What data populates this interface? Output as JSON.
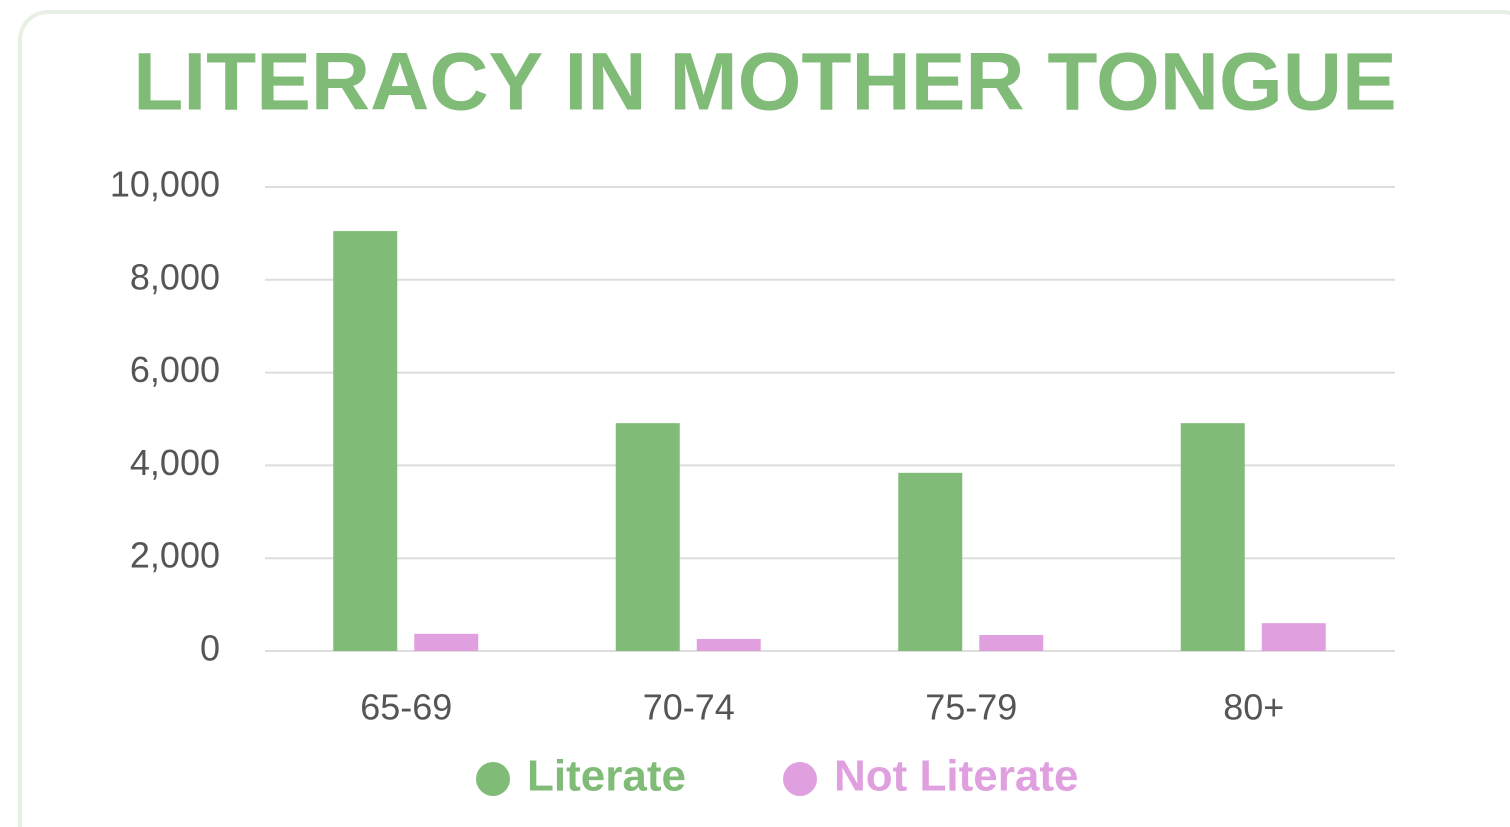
{
  "chart_data": {
    "type": "bar",
    "title": "LITERACY IN MOTHER TONGUE",
    "categories": [
      "65-69",
      "70-74",
      "75-79",
      "80+"
    ],
    "series": [
      {
        "name": "Literate",
        "color": "#80bb78",
        "values": [
          9050,
          4910,
          3840,
          4910
        ]
      },
      {
        "name": "Not Literate",
        "color": "#e0a0e0",
        "values": [
          370,
          260,
          345,
          600
        ]
      }
    ],
    "ylim": [
      0,
      10000
    ],
    "yticks": [
      0,
      {
        "value": 2000,
        "label": "2,000"
      },
      {
        "value": 4000,
        "label": "4,000"
      },
      {
        "value": 6000,
        "label": "6,000"
      },
      {
        "value": 8000,
        "label": "8,000"
      },
      {
        "value": 10000,
        "label": "10,000"
      }
    ],
    "grid": true,
    "legend": "bottom"
  }
}
